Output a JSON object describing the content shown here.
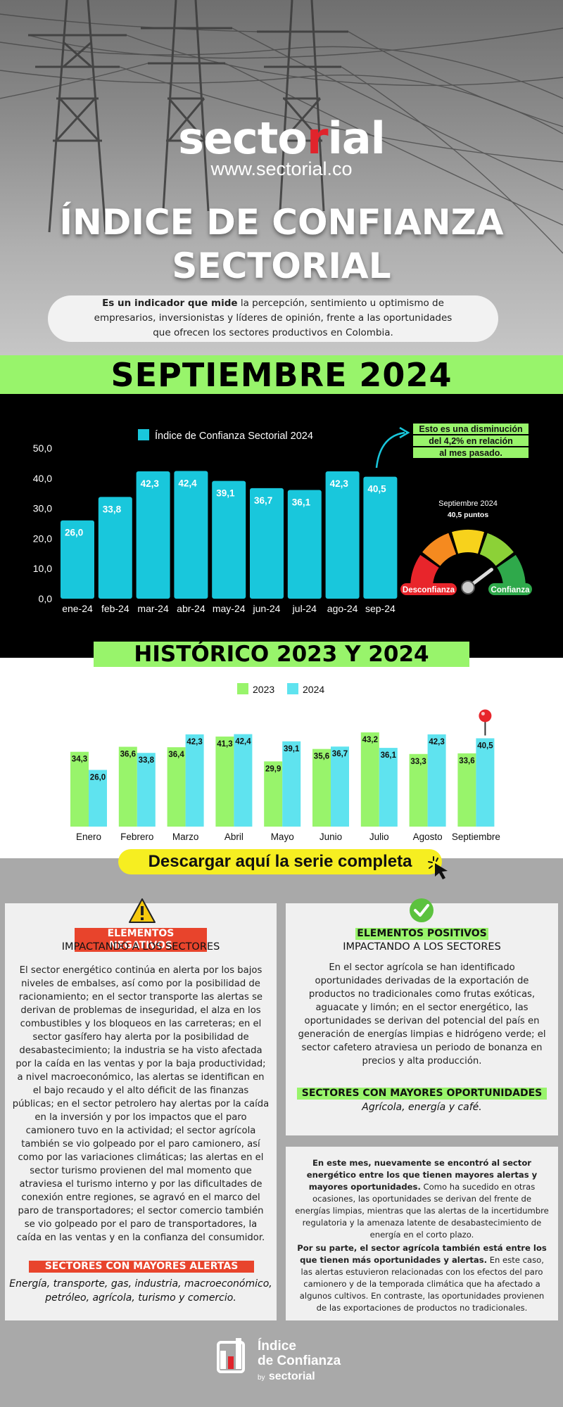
{
  "brand": {
    "logo_pre": "secto",
    "logo_accent": "r",
    "logo_post": "ial",
    "url": "www.sectorial.co"
  },
  "title": {
    "line1": "ÍNDICE DE CONFIANZA",
    "line2": "SECTORIAL"
  },
  "intro": {
    "bold": "Es un indicador que mide",
    "rest": " la percepción, sentimiento u optimismo de empresarios, inversionistas y líderes de opinión, frente a las oportunidades que ofrecen los sectores productivos en Colombia."
  },
  "month_heading": "SEPTIEMBRE 2024",
  "chart_data": [
    {
      "type": "bar",
      "legend": "Índice de Confianza Sectorial 2024",
      "categories": [
        "ene-24",
        "feb-24",
        "mar-24",
        "abr-24",
        "may-24",
        "jun-24",
        "jul-24",
        "ago-24",
        "sep-24"
      ],
      "values": [
        26.0,
        33.8,
        42.3,
        42.4,
        39.1,
        36.7,
        36.1,
        42.3,
        40.5
      ],
      "value_labels": [
        "26,0",
        "33,8",
        "42,3",
        "42,4",
        "39,1",
        "36,7",
        "36,1",
        "42,3",
        "40,5"
      ],
      "y_ticks": [
        "0,0",
        "10,0",
        "20,0",
        "30,0",
        "40,0",
        "50,0"
      ],
      "ylim": [
        0,
        50
      ],
      "color": "#19c7dc"
    },
    {
      "type": "bar",
      "title": "HISTÓRICO 2023 Y 2024",
      "categories": [
        "Enero",
        "Febrero",
        "Marzo",
        "Abril",
        "Mayo",
        "Junio",
        "Julio",
        "Agosto",
        "Septiembre"
      ],
      "series": [
        {
          "name": "2023",
          "color": "#98f46b",
          "values": [
            34.3,
            36.6,
            36.4,
            41.3,
            29.9,
            35.6,
            43.2,
            33.3,
            33.6
          ],
          "value_labels": [
            "34,3",
            "36,6",
            "36,4",
            "41,3",
            "29,9",
            "35,6",
            "43,2",
            "33,3",
            "33,6"
          ]
        },
        {
          "name": "2024",
          "color": "#5fe3ef",
          "values": [
            26.0,
            33.8,
            42.3,
            42.4,
            39.1,
            36.7,
            36.1,
            42.3,
            40.5
          ],
          "value_labels": [
            "26,0",
            "33,8",
            "42,3",
            "42,4",
            "39,1",
            "36,7",
            "36,1",
            "42,3",
            "40,5"
          ]
        }
      ],
      "ylim": [
        0,
        50
      ]
    }
  ],
  "annotation": {
    "lines": [
      "Esto es una disminución",
      "del 4,2%  en relación",
      "al mes pasado."
    ]
  },
  "gauge": {
    "caption": "Septiembre 2024",
    "value_text": "40,5 puntos",
    "value": 40.5,
    "low_label": "Desconfianza",
    "high_label": "Confianza"
  },
  "download": {
    "label": "Descargar aquí la serie completa"
  },
  "negative": {
    "tag": "ELEMENTOS NEGATIVOS",
    "subhead": "IMPACTANDO A LOS SECTORES",
    "body": "El sector energético continúa en alerta por los bajos niveles de embalses, así como por la posibilidad de racionamiento; en el sector transporte las alertas se derivan de problemas de inseguridad, el alza en los combustibles y los bloqueos en las carreteras; en el sector gasífero hay alerta por la posibilidad de desabastecimiento; la industria se ha visto afectada por la caída en las ventas y por la baja productividad; a nivel macroeconómico, las alertas se identifican en el bajo recaudo y el alto déficit de las finanzas públicas; en el sector petrolero hay alertas por la caída en la inversión y por los impactos que el paro camionero tuvo en la actividad; el sector agrícola también se vio golpeado por el paro camionero, así como por las variaciones climáticas; las alertas en el sector turismo provienen del mal momento que atraviesa el turismo interno y por las dificultades de conexión entre regiones, se agravó en el marco del paro de transportadores; el sector comercio también se vio golpeado por el paro de transportadores, la caída en las ventas y en la confianza del consumidor.",
    "list_tag": "SECTORES CON MAYORES ALERTAS",
    "list": "Energía, transporte, gas, industria, macroeconómico, petróleo, agrícola, turismo y comercio."
  },
  "positive": {
    "tag": "ELEMENTOS POSITIVOS",
    "subhead": "IMPACTANDO A LOS SECTORES",
    "body": "En el sector agrícola se han identificado oportunidades derivadas de la exportación de productos no tradicionales como frutas exóticas, aguacate y limón; en el sector energético, las oportunidades se derivan del potencial del país en generación de energías limpias e hidrógeno verde; el sector cafetero atraviesa un periodo de bonanza en precios y alta producción.",
    "list_tag": "SECTORES CON MAYORES OPORTUNIDADES",
    "list": "Agrícola, energía y café."
  },
  "note": {
    "p1_bold": "En este mes, nuevamente se encontró al sector energético entre los que tienen mayores alertas y mayores oportunidades.",
    "p1_rest": " Como ha sucedido en otras ocasiones, las oportunidades se derivan del frente de energías limpias, mientras que las alertas de la incertidumbre regulatoria y la amenaza latente de desabastecimiento de energía en el corto plazo.",
    "p2_bold": "Por su parte, el sector agrícola también está entre los que tienen más oportunidades y alertas.",
    "p2_rest": " En este caso, las alertas estuvieron relacionadas con los efectos del paro camionero y de la temporada climática que ha afectado a algunos cultivos. En contraste, las oportunidades provienen de las exportaciones de productos no tradicionales."
  },
  "footer": {
    "line1": "Índice",
    "line2": "de Confianza",
    "by": "by",
    "brand": "sectorial"
  },
  "colors": {
    "green": "#98f46b",
    "cyan": "#19c7dc",
    "red": "#e8442c",
    "yellow": "#f6ee21"
  }
}
